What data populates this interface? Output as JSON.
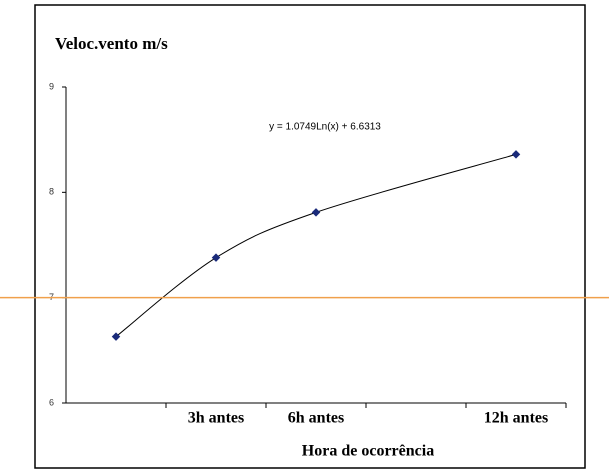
{
  "chart_data": {
    "type": "line",
    "title": "Veloc.vento m/s",
    "x_label": "Hora de ocorrência",
    "annotation": "y = 1.0749Ln(x) + 6.6313",
    "categories": [
      null,
      "3h antes",
      "6h antes",
      null,
      "12h antes"
    ],
    "series": [
      {
        "name": "Veloc.vento",
        "color": "#1a2a7a",
        "values": [
          6.63,
          7.38,
          7.81,
          null,
          8.36
        ]
      }
    ],
    "ylim": [
      6,
      9
    ],
    "yticks": [
      6,
      7,
      8,
      9
    ],
    "reference_line": {
      "value": 7,
      "color": "#f0a04b"
    }
  }
}
